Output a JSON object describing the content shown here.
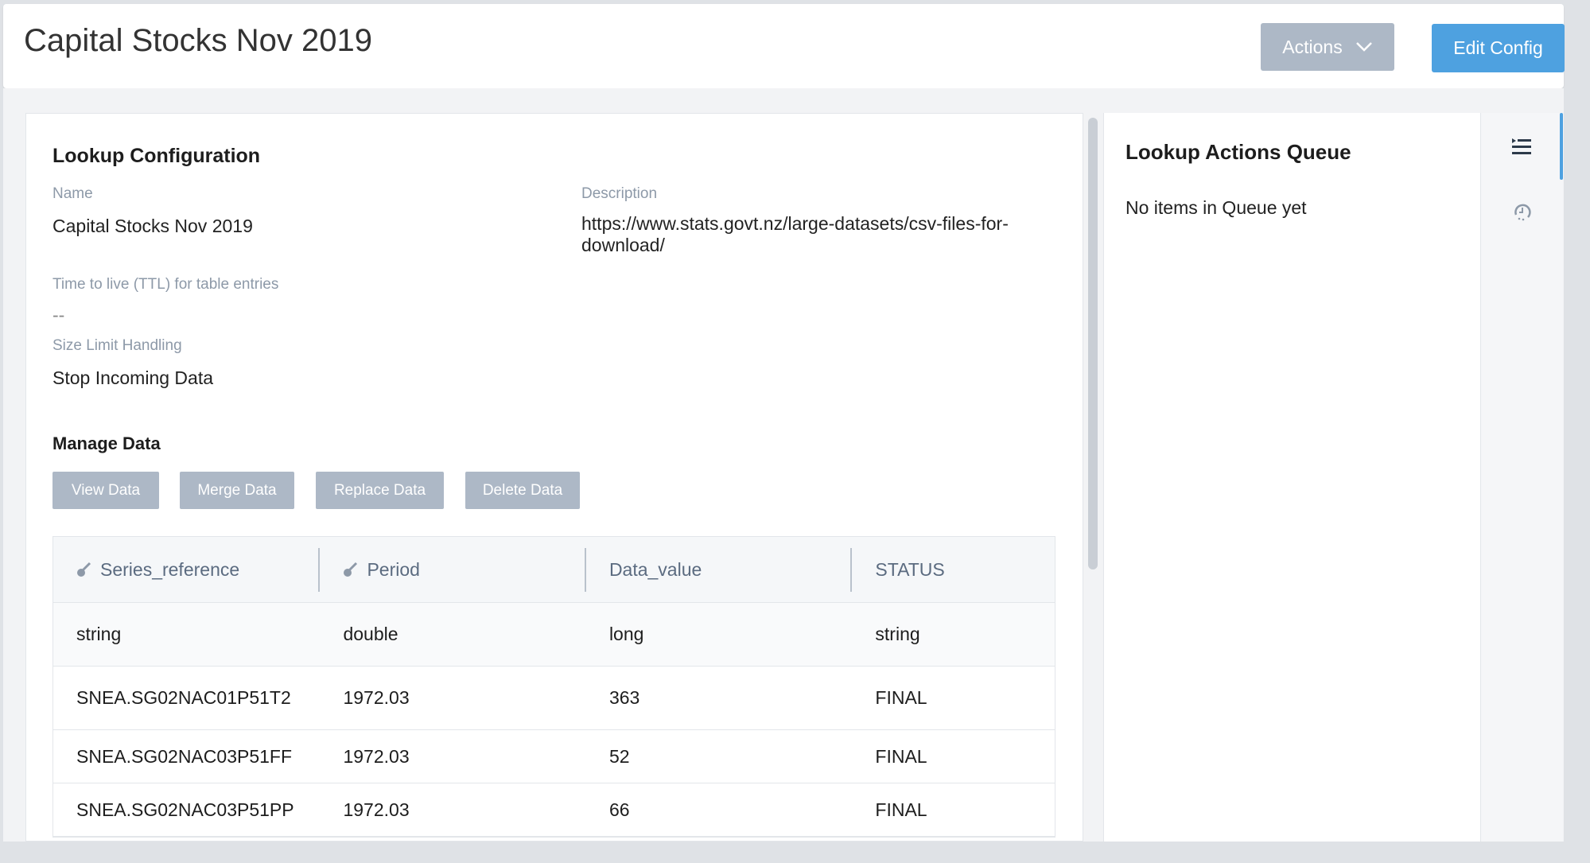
{
  "header": {
    "title": "Capital Stocks Nov 2019",
    "actions_label": "Actions",
    "edit_label": "Edit Config"
  },
  "config": {
    "heading": "Lookup Configuration",
    "name_label": "Name",
    "name_value": "Capital Stocks Nov 2019",
    "description_label": "Description",
    "description_value": "https://www.stats.govt.nz/large-datasets/csv-files-for-download/",
    "ttl_label": "Time to live (TTL) for table entries",
    "ttl_value": "--",
    "size_label": "Size Limit Handling",
    "size_value": "Stop Incoming Data"
  },
  "manage": {
    "heading": "Manage Data",
    "buttons": [
      "View Data",
      "Merge Data",
      "Replace Data",
      "Delete Data"
    ]
  },
  "table": {
    "columns": [
      {
        "label": "Series_reference",
        "key": true
      },
      {
        "label": "Period",
        "key": true
      },
      {
        "label": "Data_value",
        "key": false
      },
      {
        "label": "STATUS",
        "key": false
      }
    ],
    "types": [
      "string",
      "double",
      "long",
      "string"
    ],
    "rows": [
      [
        "SNEA.SG02NAC01P51T2",
        "1972.03",
        "363",
        "FINAL"
      ],
      [
        "SNEA.SG02NAC03P51FF",
        "1972.03",
        "52",
        "FINAL"
      ],
      [
        "SNEA.SG02NAC03P51PP",
        "1972.03",
        "66",
        "FINAL"
      ]
    ]
  },
  "queue": {
    "heading": "Lookup Actions Queue",
    "empty": "No items in Queue yet"
  },
  "icons": {
    "queue": "list-queue-icon",
    "history": "history-icon",
    "key": "key-icon"
  },
  "colors": {
    "primary": "#4ea1e0",
    "secondary": "#adb8c6"
  }
}
